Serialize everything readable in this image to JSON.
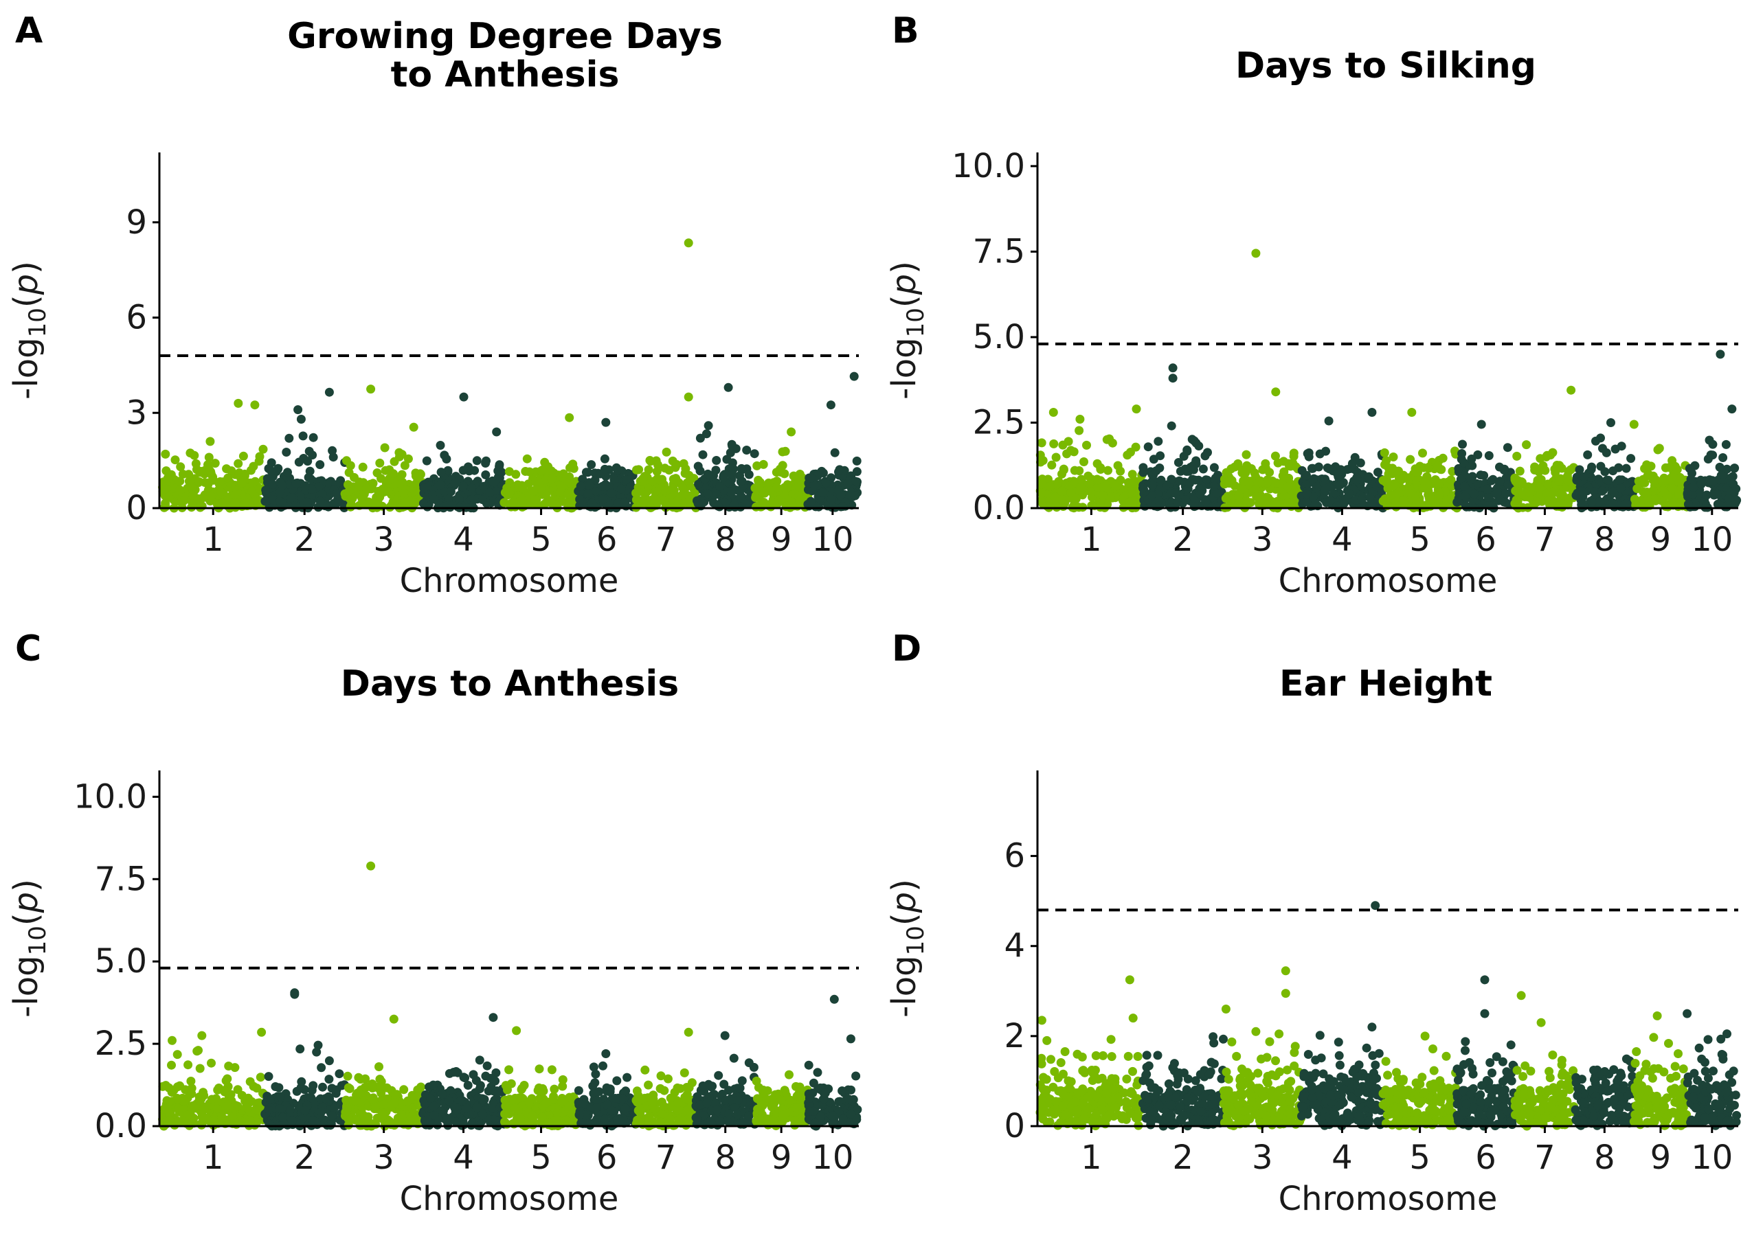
{
  "colors": {
    "light": "#79b900",
    "dark": "#1c4338"
  },
  "chart_data": [
    {
      "panel": "A",
      "type": "scatter",
      "title": [
        "Growing Degree Days",
        "to Anthesis"
      ],
      "xlabel": "Chromosome",
      "ylabel": "-log10(p)",
      "ylim": [
        0,
        11.2
      ],
      "yticks": [
        0,
        3,
        6,
        9
      ],
      "ytick_labels": [
        "0",
        "3",
        "6",
        "9"
      ],
      "threshold": 4.8,
      "chromosomes": [
        {
          "label": "1",
          "start": 0,
          "end": 308
        },
        {
          "label": "2",
          "start": 308,
          "end": 552
        },
        {
          "label": "3",
          "start": 552,
          "end": 787
        },
        {
          "label": "4",
          "start": 787,
          "end": 1033
        },
        {
          "label": "5",
          "start": 1033,
          "end": 1256
        },
        {
          "label": "6",
          "start": 1256,
          "end": 1430
        },
        {
          "label": "7",
          "start": 1430,
          "end": 1612
        },
        {
          "label": "8",
          "start": 1612,
          "end": 1790
        },
        {
          "label": "9",
          "start": 1790,
          "end": 1950
        },
        {
          "label": "10",
          "start": 1950,
          "end": 2100
        }
      ],
      "bulk_max": [
        2.1,
        2.3,
        2.1,
        2.0,
        1.8,
        1.9,
        2.0,
        2.4,
        1.8,
        2.0
      ],
      "peaks": [
        {
          "x": 10,
          "y": 1.7
        },
        {
          "x": 145,
          "y": 2.1
        },
        {
          "x": 230,
          "y": 3.3
        },
        {
          "x": 280,
          "y": 3.25
        },
        {
          "x": 410,
          "y": 3.1
        },
        {
          "x": 420,
          "y": 2.8
        },
        {
          "x": 505,
          "y": 3.65
        },
        {
          "x": 630,
          "y": 3.75
        },
        {
          "x": 760,
          "y": 2.55
        },
        {
          "x": 911,
          "y": 3.5
        },
        {
          "x": 1010,
          "y": 2.4
        },
        {
          "x": 1230,
          "y": 2.85
        },
        {
          "x": 1340,
          "y": 2.7
        },
        {
          "x": 1590,
          "y": 8.35
        },
        {
          "x": 1590,
          "y": 3.5
        },
        {
          "x": 1650,
          "y": 2.6
        },
        {
          "x": 1710,
          "y": 3.8
        },
        {
          "x": 1900,
          "y": 2.4
        },
        {
          "x": 2020,
          "y": 3.25
        },
        {
          "x": 2090,
          "y": 4.15
        }
      ]
    },
    {
      "panel": "B",
      "type": "scatter",
      "title": [
        "Days to Silking"
      ],
      "xlabel": "Chromosome",
      "ylabel": "-log10(p)",
      "ylim": [
        0,
        10.4
      ],
      "yticks": [
        0,
        2.5,
        5,
        7.5,
        10
      ],
      "ytick_labels": [
        "0.0",
        "2.5",
        "5.0",
        "7.5",
        "10.0"
      ],
      "threshold": 4.8,
      "chromosomes": [
        {
          "label": "1",
          "start": 0,
          "end": 308
        },
        {
          "label": "2",
          "start": 308,
          "end": 552
        },
        {
          "label": "3",
          "start": 552,
          "end": 787
        },
        {
          "label": "4",
          "start": 787,
          "end": 1033
        },
        {
          "label": "5",
          "start": 1033,
          "end": 1256
        },
        {
          "label": "6",
          "start": 1256,
          "end": 1430
        },
        {
          "label": "7",
          "start": 1430,
          "end": 1612
        },
        {
          "label": "8",
          "start": 1612,
          "end": 1790
        },
        {
          "label": "9",
          "start": 1790,
          "end": 1950
        },
        {
          "label": "10",
          "start": 1950,
          "end": 2100
        }
      ],
      "bulk_max": [
        2.4,
        2.5,
        2.0,
        2.1,
        1.9,
        2.0,
        2.1,
        2.5,
        1.8,
        2.0
      ],
      "peaks": [
        {
          "x": 40,
          "y": 2.8
        },
        {
          "x": 120,
          "y": 2.6
        },
        {
          "x": 290,
          "y": 2.9
        },
        {
          "x": 400,
          "y": 4.1
        },
        {
          "x": 400,
          "y": 3.8
        },
        {
          "x": 650,
          "y": 7.45
        },
        {
          "x": 710,
          "y": 3.4
        },
        {
          "x": 870,
          "y": 2.55
        },
        {
          "x": 1000,
          "y": 2.8
        },
        {
          "x": 1120,
          "y": 2.8
        },
        {
          "x": 1330,
          "y": 2.45
        },
        {
          "x": 1600,
          "y": 3.45
        },
        {
          "x": 1720,
          "y": 2.5
        },
        {
          "x": 1790,
          "y": 2.45
        },
        {
          "x": 2050,
          "y": 4.5
        },
        {
          "x": 2085,
          "y": 2.9
        }
      ]
    },
    {
      "panel": "C",
      "type": "scatter",
      "title": [
        "Days to Anthesis"
      ],
      "xlabel": "Chromosome",
      "ylabel": "-log10(p)",
      "ylim": [
        0,
        10.8
      ],
      "yticks": [
        0,
        2.5,
        5,
        7.5,
        10
      ],
      "ytick_labels": [
        "0.0",
        "2.5",
        "5.0",
        "7.5",
        "10.0"
      ],
      "threshold": 4.8,
      "chromosomes": [
        {
          "label": "1",
          "start": 0,
          "end": 308
        },
        {
          "label": "2",
          "start": 308,
          "end": 552
        },
        {
          "label": "3",
          "start": 552,
          "end": 787
        },
        {
          "label": "4",
          "start": 787,
          "end": 1033
        },
        {
          "label": "5",
          "start": 1033,
          "end": 1256
        },
        {
          "label": "6",
          "start": 1256,
          "end": 1430
        },
        {
          "label": "7",
          "start": 1430,
          "end": 1612
        },
        {
          "label": "8",
          "start": 1612,
          "end": 1790
        },
        {
          "label": "9",
          "start": 1790,
          "end": 1950
        },
        {
          "label": "10",
          "start": 1950,
          "end": 2100
        }
      ],
      "bulk_max": [
        2.4,
        2.5,
        2.0,
        2.1,
        1.9,
        2.0,
        2.2,
        2.4,
        1.8,
        2.1
      ],
      "peaks": [
        {
          "x": 30,
          "y": 2.6
        },
        {
          "x": 120,
          "y": 2.75
        },
        {
          "x": 300,
          "y": 2.85
        },
        {
          "x": 400,
          "y": 4.05
        },
        {
          "x": 400,
          "y": 4.0
        },
        {
          "x": 630,
          "y": 7.9
        },
        {
          "x": 700,
          "y": 3.25
        },
        {
          "x": 1000,
          "y": 3.3
        },
        {
          "x": 1070,
          "y": 2.9
        },
        {
          "x": 1340,
          "y": 2.2
        },
        {
          "x": 1590,
          "y": 2.85
        },
        {
          "x": 1700,
          "y": 2.75
        },
        {
          "x": 2030,
          "y": 3.85
        },
        {
          "x": 2080,
          "y": 2.65
        }
      ]
    },
    {
      "panel": "D",
      "type": "scatter",
      "title": [
        "Ear Height"
      ],
      "xlabel": "Chromosome",
      "ylabel": "-log10(p)",
      "ylim": [
        0,
        7.9
      ],
      "yticks": [
        0,
        2,
        4,
        6
      ],
      "ytick_labels": [
        "0",
        "2",
        "4",
        "6"
      ],
      "threshold": 4.8,
      "chromosomes": [
        {
          "label": "1",
          "start": 0,
          "end": 308
        },
        {
          "label": "2",
          "start": 308,
          "end": 552
        },
        {
          "label": "3",
          "start": 552,
          "end": 787
        },
        {
          "label": "4",
          "start": 787,
          "end": 1033
        },
        {
          "label": "5",
          "start": 1033,
          "end": 1256
        },
        {
          "label": "6",
          "start": 1256,
          "end": 1430
        },
        {
          "label": "7",
          "start": 1430,
          "end": 1612
        },
        {
          "label": "8",
          "start": 1612,
          "end": 1790
        },
        {
          "label": "9",
          "start": 1790,
          "end": 1950
        },
        {
          "label": "10",
          "start": 1950,
          "end": 2100
        }
      ],
      "bulk_max": [
        2.0,
        2.0,
        2.2,
        2.1,
        1.8,
        1.9,
        2.0,
        1.8,
        2.0,
        2.0
      ],
      "peaks": [
        {
          "x": 5,
          "y": 2.35
        },
        {
          "x": 20,
          "y": 1.9
        },
        {
          "x": 270,
          "y": 3.25
        },
        {
          "x": 280,
          "y": 2.4
        },
        {
          "x": 560,
          "y": 2.6
        },
        {
          "x": 650,
          "y": 2.1
        },
        {
          "x": 740,
          "y": 3.45
        },
        {
          "x": 740,
          "y": 2.95
        },
        {
          "x": 1010,
          "y": 4.9
        },
        {
          "x": 1000,
          "y": 2.2
        },
        {
          "x": 1160,
          "y": 2.0
        },
        {
          "x": 1340,
          "y": 3.25
        },
        {
          "x": 1340,
          "y": 2.5
        },
        {
          "x": 1450,
          "y": 2.9
        },
        {
          "x": 1510,
          "y": 2.3
        },
        {
          "x": 1860,
          "y": 2.45
        },
        {
          "x": 1950,
          "y": 2.5
        },
        {
          "x": 2070,
          "y": 2.05
        }
      ]
    }
  ]
}
